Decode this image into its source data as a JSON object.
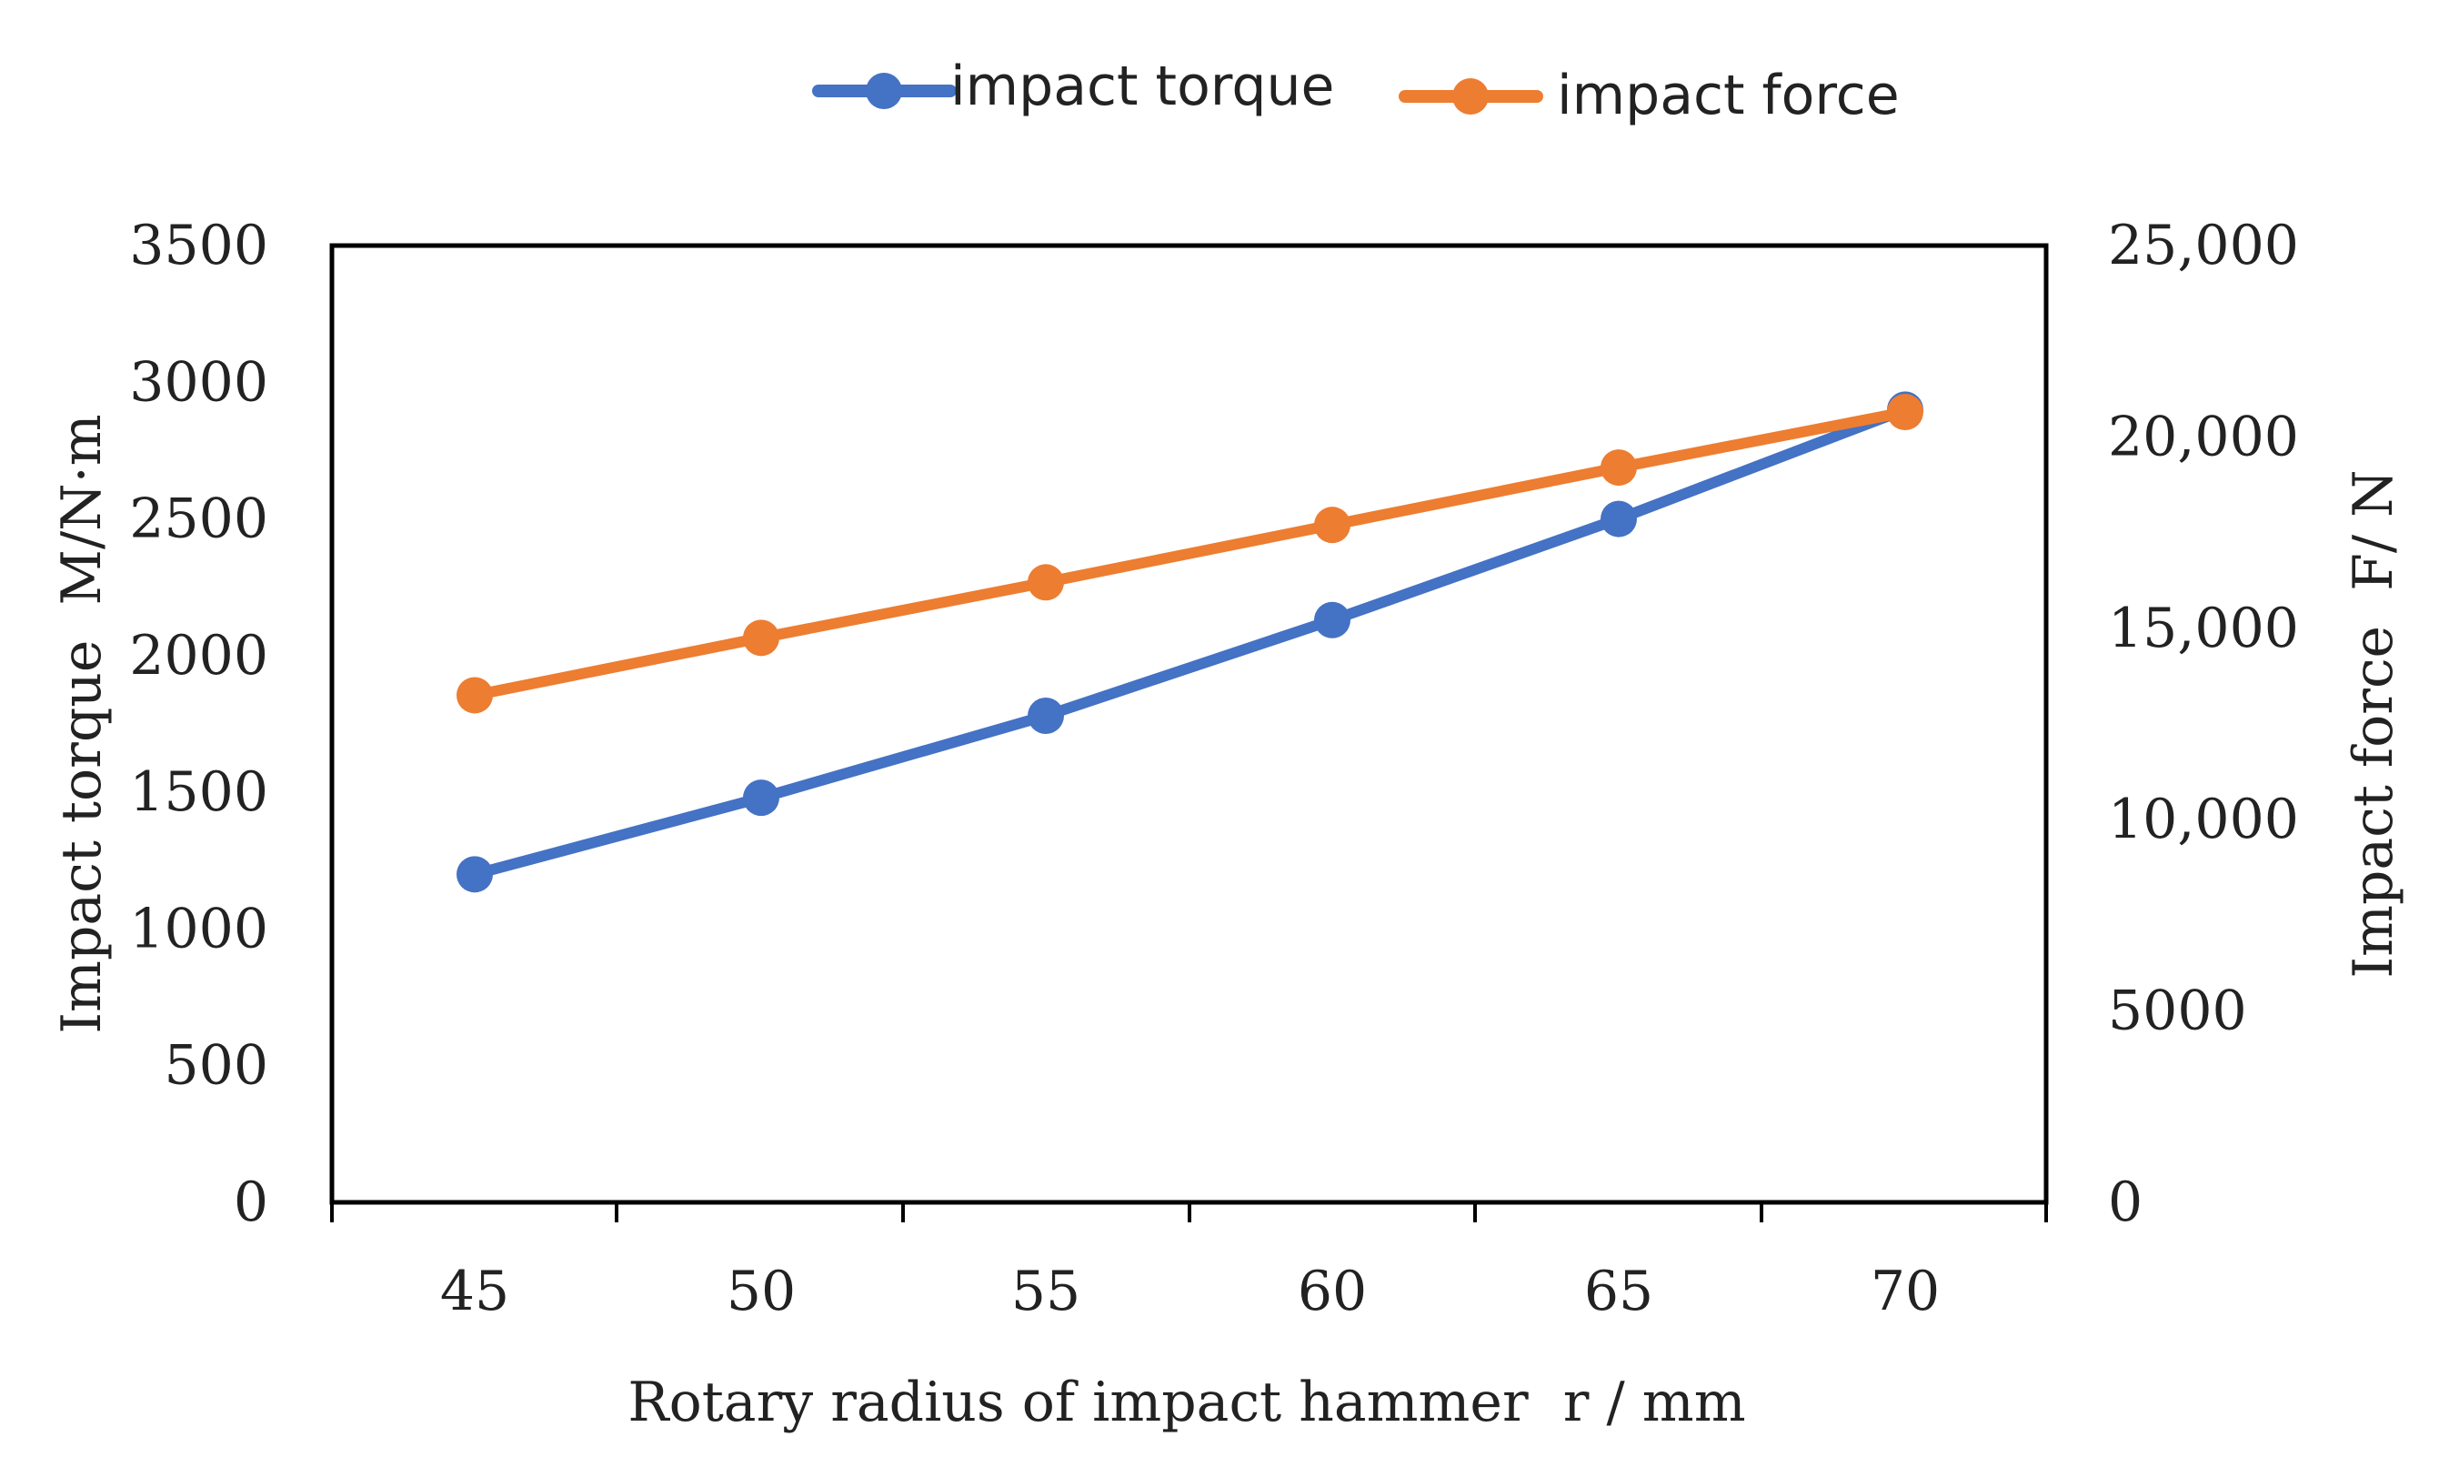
{
  "chart_data": {
    "type": "line",
    "x": [
      45,
      50,
      55,
      60,
      65,
      70
    ],
    "series": [
      {
        "name": "impact torque",
        "axis": "left",
        "color": "#4472C4",
        "values": [
          1200,
          1480,
          1780,
          2130,
          2500,
          2900
        ]
      },
      {
        "name": "impact force",
        "axis": "right",
        "color": "#ED7D31",
        "values": [
          13250,
          14750,
          16200,
          17700,
          19200,
          20650
        ]
      }
    ],
    "xlabel": "Rotary radius of impact hammer  r / mm",
    "ylabel_left": "Impact torque  M/N·m",
    "ylabel_right": "Impact force  F/ N",
    "xticks": [
      "45",
      "50",
      "55",
      "60",
      "65",
      "70"
    ],
    "yticks_left": [
      "0",
      "500",
      "1000",
      "1500",
      "2000",
      "2500",
      "3000",
      "3500"
    ],
    "yticks_right": [
      "0",
      "5000",
      "10,000",
      "15,000",
      "20,000",
      "25,000"
    ],
    "ylim_left": [
      0,
      3500
    ],
    "ylim_right": [
      0,
      25000
    ],
    "legend_position": "top-center",
    "grid": false
  }
}
